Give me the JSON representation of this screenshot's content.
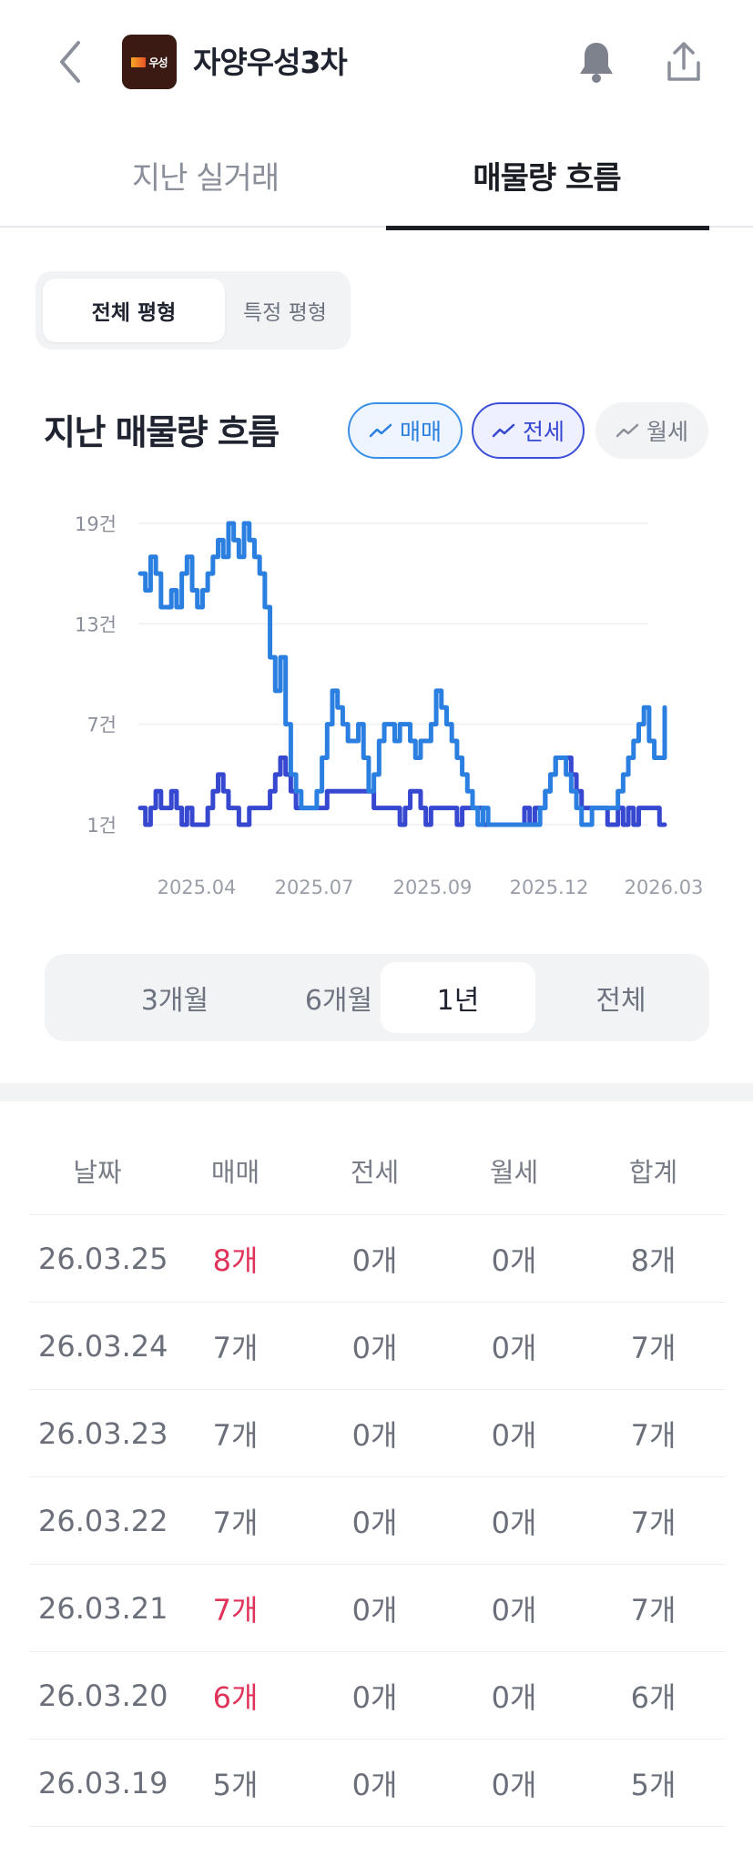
{
  "header": {
    "title": "자양우성3차",
    "logo_text": "우성"
  },
  "tabs": [
    {
      "label": "지난 실거래",
      "active": false
    },
    {
      "label": "매물량 흐름",
      "active": true
    }
  ],
  "size_filter": {
    "options": [
      "전체 평형",
      "특정 평형"
    ],
    "selected": "전체 평형"
  },
  "chart_section": {
    "title": "지난 매물량 흐름",
    "chips": [
      {
        "label": "매매",
        "active": true,
        "color": "#2a7fe0"
      },
      {
        "label": "전세",
        "active": true,
        "color": "#3647d0"
      },
      {
        "label": "월세",
        "active": false,
        "color": "#777c86"
      }
    ]
  },
  "chart_data": {
    "type": "line",
    "y_ticks": [
      "19건",
      "13건",
      "7건",
      "1건"
    ],
    "y_tick_values": [
      19,
      13,
      7,
      1
    ],
    "x_ticks": [
      "2025.04",
      "2025.07",
      "2025.09",
      "2025.12",
      "2026.03"
    ],
    "ylim": [
      1,
      19
    ],
    "series": [
      {
        "name": "매매",
        "color": "#2a7fe0",
        "values": [
          16,
          15,
          17,
          16,
          14,
          14,
          15,
          14,
          16,
          17,
          15,
          14,
          15,
          16,
          17,
          18,
          17,
          19,
          18,
          17,
          19,
          18,
          17,
          16,
          14,
          11,
          9,
          11,
          7,
          4,
          3,
          2,
          2,
          2,
          3,
          5,
          7,
          9,
          8,
          7,
          6,
          6,
          7,
          5,
          3,
          4,
          6,
          7,
          7,
          6,
          7,
          7,
          6,
          5,
          6,
          6,
          7,
          9,
          8,
          7,
          6,
          5,
          4,
          3,
          2,
          1,
          2,
          1,
          1,
          1,
          1,
          1,
          1,
          1,
          1,
          1,
          1,
          2,
          3,
          4,
          5,
          5,
          4,
          3,
          2,
          1,
          1,
          2,
          2,
          2,
          2,
          2,
          3,
          4,
          5,
          6,
          7,
          8,
          6,
          5,
          5,
          8
        ]
      },
      {
        "name": "전세",
        "color": "#3647d0",
        "values": [
          2,
          1,
          2,
          3,
          2,
          2,
          3,
          2,
          1,
          2,
          1,
          1,
          1,
          2,
          3,
          4,
          3,
          2,
          2,
          1,
          1,
          2,
          2,
          2,
          2,
          3,
          4,
          5,
          4,
          3,
          2,
          2,
          2,
          2,
          2,
          2,
          3,
          3,
          3,
          3,
          3,
          3,
          3,
          3,
          3,
          2,
          2,
          2,
          2,
          2,
          1,
          2,
          3,
          3,
          2,
          1,
          2,
          2,
          2,
          2,
          2,
          1,
          2,
          2,
          2,
          2,
          1,
          1,
          1,
          1,
          1,
          1,
          1,
          1,
          2,
          1,
          2,
          2,
          3,
          4,
          5,
          5,
          5,
          4,
          3,
          2,
          2,
          2,
          2,
          2,
          1,
          1,
          2,
          1,
          2,
          1,
          2,
          2,
          2,
          2,
          1,
          1
        ]
      }
    ]
  },
  "period_filter": {
    "options": [
      "3개월",
      "6개월",
      "1년",
      "전체"
    ],
    "selected": "1년"
  },
  "table": {
    "headers": [
      "날짜",
      "매매",
      "전세",
      "월세",
      "합계"
    ],
    "rows": [
      {
        "date": "26.03.25",
        "sale": "8개",
        "jeonse": "0개",
        "wolse": "0개",
        "total": "8개",
        "sale_highlight": true
      },
      {
        "date": "26.03.24",
        "sale": "7개",
        "jeonse": "0개",
        "wolse": "0개",
        "total": "7개",
        "sale_highlight": false
      },
      {
        "date": "26.03.23",
        "sale": "7개",
        "jeonse": "0개",
        "wolse": "0개",
        "total": "7개",
        "sale_highlight": false
      },
      {
        "date": "26.03.22",
        "sale": "7개",
        "jeonse": "0개",
        "wolse": "0개",
        "total": "7개",
        "sale_highlight": false
      },
      {
        "date": "26.03.21",
        "sale": "7개",
        "jeonse": "0개",
        "wolse": "0개",
        "total": "7개",
        "sale_highlight": true
      },
      {
        "date": "26.03.20",
        "sale": "6개",
        "jeonse": "0개",
        "wolse": "0개",
        "total": "6개",
        "sale_highlight": true
      },
      {
        "date": "26.03.19",
        "sale": "5개",
        "jeonse": "0개",
        "wolse": "0개",
        "total": "5개",
        "sale_highlight": false
      }
    ]
  }
}
